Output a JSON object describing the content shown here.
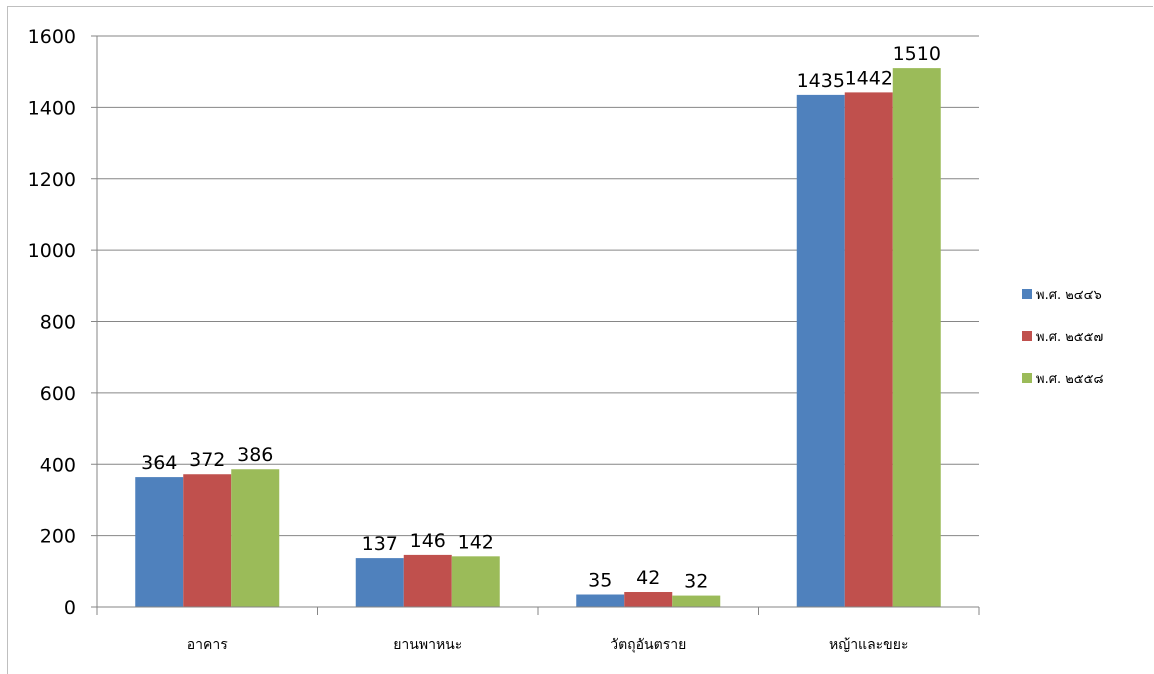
{
  "chart_data": {
    "type": "bar",
    "categories": [
      "อาคาร",
      "ยานพาหนะ",
      "วัตถุอันตราย",
      "หญ้าและขยะ"
    ],
    "series": [
      {
        "name": "พ.ศ. ๒๔๔๖",
        "color": "#4F81BD",
        "values": [
          364,
          137,
          35,
          1435
        ]
      },
      {
        "name": "พ.ศ. ๒๕๕๗",
        "color": "#C0504D",
        "values": [
          372,
          146,
          42,
          1442
        ]
      },
      {
        "name": "พ.ศ. ๒๕๕๘",
        "color": "#9BBB59",
        "values": [
          386,
          142,
          32,
          1510
        ]
      }
    ],
    "ylim": [
      0,
      1600
    ],
    "yticks": [
      0,
      200,
      400,
      600,
      800,
      1000,
      1200,
      1400,
      1600
    ],
    "grid": true,
    "legend_position": "right",
    "title": "",
    "xlabel": "",
    "ylabel": ""
  }
}
